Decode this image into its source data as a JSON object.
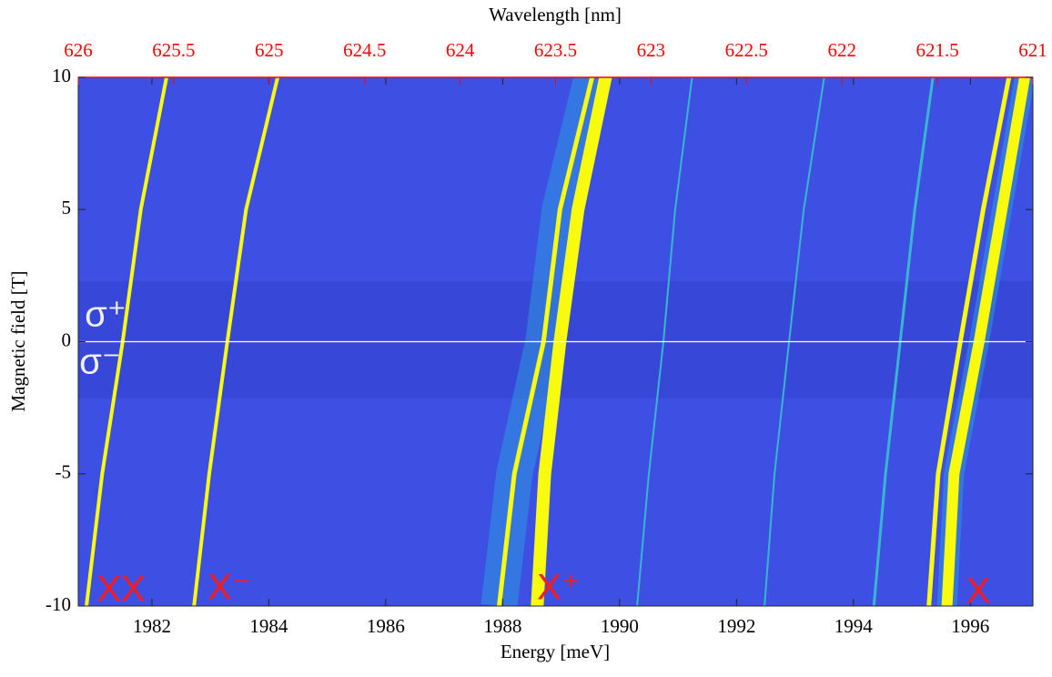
{
  "chart_data": {
    "type": "spectral-map",
    "xlabel": "Energy [meV]",
    "ylabel": "Magnetic field [T]",
    "x2label": "Wavelength [nm]",
    "xlim": [
      1980.74,
      1997.07
    ],
    "xticks": [
      1982,
      1984,
      1986,
      1988,
      1990,
      1992,
      1994,
      1996
    ],
    "x2lim": [
      626,
      621
    ],
    "x2ticks": [
      626,
      625.5,
      625,
      624.5,
      624,
      623.5,
      623,
      622.5,
      622,
      621.5,
      621
    ],
    "ylim": [
      -10,
      10
    ],
    "yticks": [
      -10,
      -5,
      0,
      5,
      10
    ],
    "x2color": "#ff0000",
    "background": "#3d50e3",
    "series": [
      {
        "color": "#f9fb0e",
        "x": [
          1980.88,
          1981.15,
          1981.5,
          1981.81,
          1982.25
        ],
        "values": [
          -10,
          -5,
          0,
          5,
          10
        ]
      },
      {
        "color": "#f9fb0e",
        "x": [
          1982.72,
          1982.98,
          1983.29,
          1983.61,
          1984.15
        ],
        "values": [
          -10,
          -5,
          0,
          5,
          10
        ]
      },
      {
        "color": "#f9fb0e",
        "x": [
          1987.94,
          1988.2,
          1988.7,
          1988.98,
          1989.53
        ],
        "values": [
          -10,
          -5,
          0,
          5,
          10
        ]
      },
      {
        "color": "#f9fb0e",
        "x": [
          1988.59,
          1988.72,
          1988.98,
          1989.29,
          1989.76
        ],
        "values": [
          -10,
          -5,
          0,
          5,
          10
        ]
      },
      {
        "color": "#38b6d0",
        "x": [
          1990.3,
          1990.5,
          1990.75,
          1990.95,
          1991.24
        ],
        "values": [
          -10,
          -5,
          0,
          5,
          10
        ]
      },
      {
        "color": "#38b6d0",
        "x": [
          1992.48,
          1992.65,
          1992.9,
          1993.15,
          1993.5
        ],
        "values": [
          -10,
          -5,
          0,
          5,
          10
        ]
      },
      {
        "color": "#38b6d0",
        "x": [
          1994.35,
          1994.55,
          1994.8,
          1995.05,
          1995.36
        ],
        "values": [
          -10,
          -5,
          0,
          5,
          10
        ]
      },
      {
        "color": "#f9fb0e",
        "x": [
          1995.29,
          1995.45,
          1995.83,
          1996.22,
          1996.66
        ],
        "values": [
          -10,
          -5,
          0,
          5,
          10
        ]
      },
      {
        "color": "#f9fb0e",
        "x": [
          1995.6,
          1995.72,
          1996.15,
          1996.54,
          1996.93
        ],
        "values": [
          -10,
          -5,
          0,
          5,
          10
        ]
      }
    ],
    "annotations": [
      "XX",
      "X⁻",
      "X⁺",
      "X",
      "σ⁺",
      "σ⁻"
    ]
  }
}
